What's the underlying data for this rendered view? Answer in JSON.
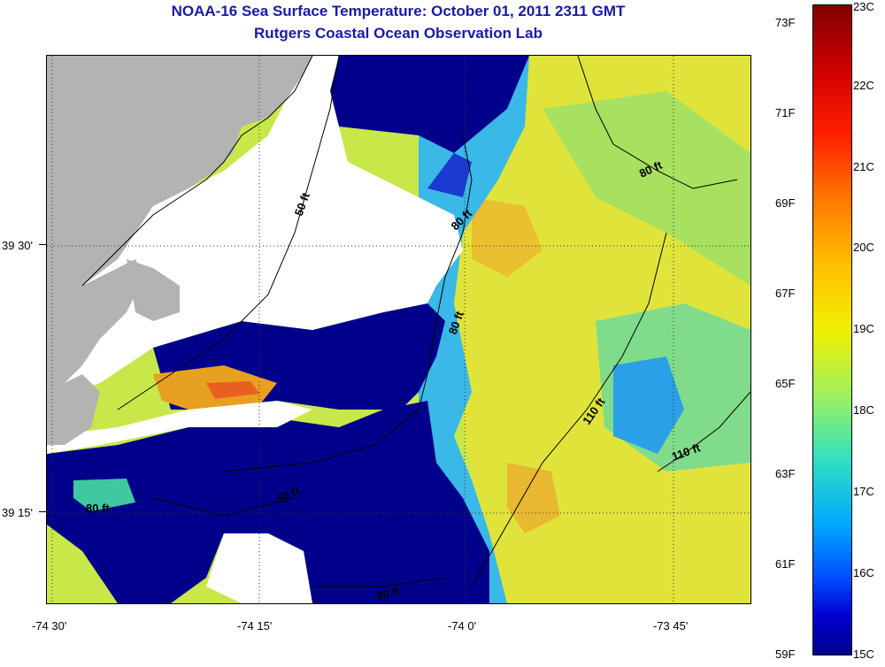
{
  "title": "NOAA-16 Sea Surface Temperature:  October 01, 2011 2311 GMT",
  "subtitle": "Rutgers Coastal Ocean Observation Lab",
  "map": {
    "lat_labels": [
      "39 30'",
      "39 15'"
    ],
    "lon_labels": [
      "-74 30'",
      "-74 15'",
      "-74 0'",
      "-73 45'"
    ],
    "contour_labels": [
      "50 ft",
      "80 ft",
      "80 ft",
      "80 ft",
      "110 ft",
      "110 ft",
      "80 ft",
      "50 ft",
      "80 ft"
    ]
  },
  "colorbar": {
    "fahrenheit_labels": [
      "73F",
      "71F",
      "69F",
      "67F",
      "65F",
      "63F",
      "61F",
      "59F"
    ],
    "celsius_labels": [
      "23C",
      "22C",
      "21C",
      "20C",
      "19C",
      "18C",
      "17C",
      "16C",
      "15C"
    ],
    "min_c": 15,
    "max_c": 23
  },
  "colors": {
    "land": "#b3b3b3",
    "no_data": "#ffffff",
    "cold": "#00008b",
    "title_text": "#1a1aa6"
  }
}
